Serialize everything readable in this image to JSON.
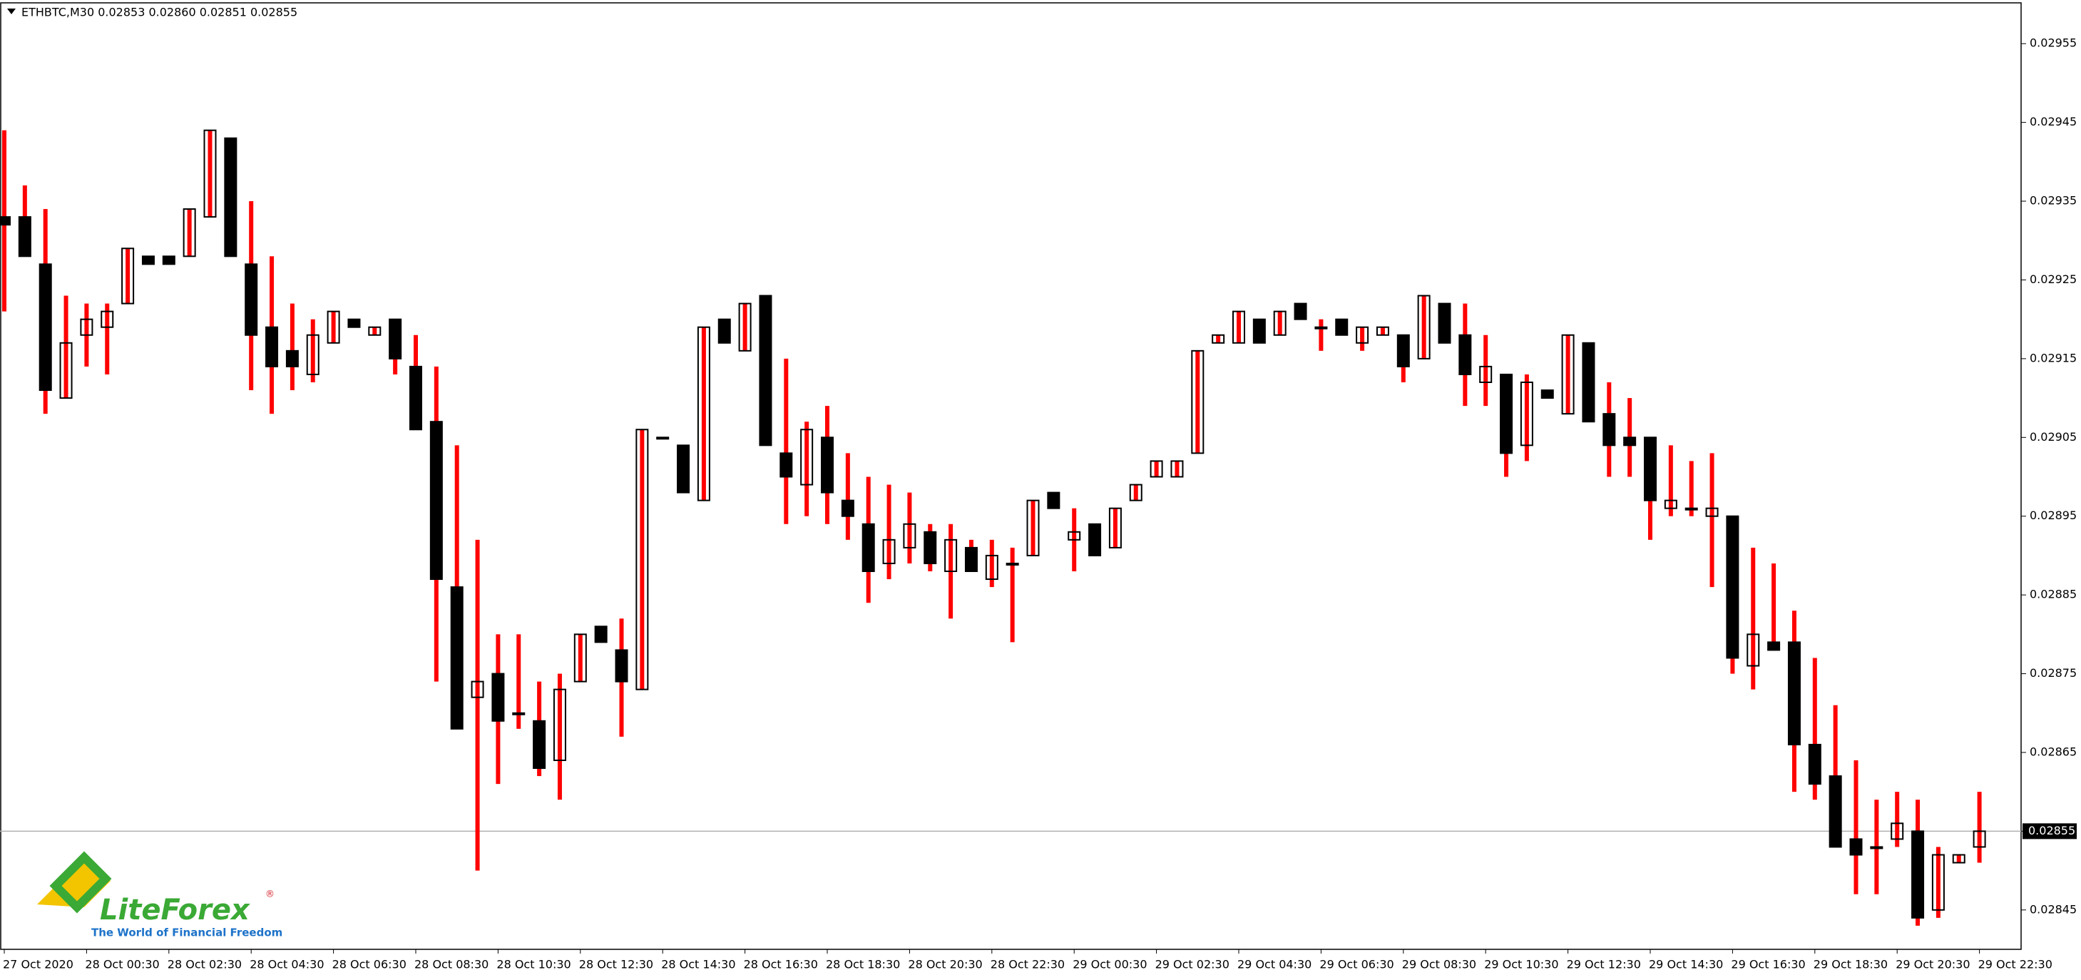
{
  "header": {
    "title": "ETHBTC,M30  0.02853 0.02860 0.02851 0.02855"
  },
  "logo": {
    "name": "LiteForex",
    "tagline": "The World of Financial Freedom"
  },
  "chart_data": {
    "type": "candlestick",
    "categories": [
      "27 Oct 2020",
      null,
      null,
      null,
      "28 Oct 00:30",
      null,
      null,
      null,
      "28 Oct 02:30",
      null,
      null,
      null,
      "28 Oct 04:30",
      null,
      null,
      null,
      "28 Oct 06:30",
      null,
      null,
      null,
      "28 Oct 08:30",
      null,
      null,
      null,
      "28 Oct 10:30",
      null,
      null,
      null,
      "28 Oct 12:30",
      null,
      null,
      null,
      "28 Oct 14:30",
      null,
      null,
      null,
      "28 Oct 16:30",
      null,
      null,
      null,
      "28 Oct 18:30",
      null,
      null,
      null,
      "28 Oct 20:30",
      null,
      null,
      null,
      "28 Oct 22:30",
      null,
      null,
      null,
      "29 Oct 00:30",
      null,
      null,
      null,
      "29 Oct 02:30",
      null,
      null,
      null,
      "29 Oct 04:30",
      null,
      null,
      null,
      "29 Oct 06:30",
      null,
      null,
      null,
      "29 Oct 08:30",
      null,
      null,
      null,
      "29 Oct 10:30",
      null,
      null,
      null,
      "29 Oct 12:30",
      null,
      null,
      null,
      "29 Oct 14:30",
      null,
      null,
      null,
      "29 Oct 16:30",
      null,
      null,
      null,
      "29 Oct 18:30",
      null,
      null,
      null,
      "29 Oct 20:30",
      null,
      null,
      null,
      "29 Oct 22:30"
    ],
    "open": [
      0.02933,
      0.02933,
      0.02927,
      0.0291,
      0.02918,
      0.02919,
      0.02922,
      0.02928,
      0.02928,
      0.02928,
      0.02933,
      0.02943,
      0.02927,
      0.02919,
      0.02916,
      0.02913,
      0.02917,
      0.0292,
      0.02918,
      0.0292,
      0.02914,
      0.02907,
      0.02886,
      0.02872,
      0.02875,
      0.0287,
      0.02869,
      0.02864,
      0.02874,
      0.02881,
      0.02878,
      0.02873,
      0.02905,
      0.02904,
      0.02897,
      0.0292,
      0.02916,
      0.02923,
      0.02903,
      0.02899,
      0.02905,
      0.02897,
      0.02894,
      0.02889,
      0.02891,
      0.02893,
      0.02888,
      0.02891,
      0.02887,
      0.02889,
      0.0289,
      0.02898,
      0.02892,
      0.02894,
      0.02891,
      0.02897,
      0.029,
      0.029,
      0.02903,
      0.02917,
      0.02917,
      0.0292,
      0.02918,
      0.02922,
      0.02919,
      0.0292,
      0.02917,
      0.02918,
      0.02918,
      0.02915,
      0.02922,
      0.02918,
      0.02912,
      0.02913,
      0.02904,
      0.02911,
      0.02908,
      0.02917,
      0.02908,
      0.02905,
      0.02905,
      0.02896,
      0.02896,
      0.02895,
      0.02895,
      0.02876,
      0.02879,
      0.02879,
      0.02866,
      0.02862,
      0.02854,
      0.02853,
      0.02854,
      0.02855,
      0.02845,
      0.02851,
      0.02853
    ],
    "high": [
      0.02944,
      0.02937,
      0.02934,
      0.02923,
      0.02922,
      0.02922,
      0.02929,
      0.02928,
      0.02928,
      0.02934,
      0.02944,
      0.02943,
      0.02935,
      0.02928,
      0.02922,
      0.0292,
      0.02921,
      0.0292,
      0.02919,
      0.0292,
      0.02918,
      0.02914,
      0.02904,
      0.02892,
      0.0288,
      0.0288,
      0.02874,
      0.02875,
      0.0288,
      0.02881,
      0.02882,
      0.02906,
      0.02905,
      0.02904,
      0.02919,
      0.0292,
      0.02922,
      0.02923,
      0.02915,
      0.02907,
      0.02909,
      0.02903,
      0.029,
      0.02899,
      0.02898,
      0.02894,
      0.02894,
      0.02892,
      0.02892,
      0.02891,
      0.02897,
      0.02898,
      0.02896,
      0.02894,
      0.02896,
      0.02899,
      0.02902,
      0.02902,
      0.02916,
      0.02918,
      0.02921,
      0.0292,
      0.02921,
      0.02922,
      0.0292,
      0.0292,
      0.02919,
      0.02919,
      0.02918,
      0.02923,
      0.02922,
      0.02922,
      0.02918,
      0.02913,
      0.02913,
      0.02911,
      0.02918,
      0.02917,
      0.02912,
      0.0291,
      0.02905,
      0.02904,
      0.02902,
      0.02903,
      0.02895,
      0.02891,
      0.02889,
      0.02883,
      0.02877,
      0.02871,
      0.02864,
      0.02859,
      0.0286,
      0.02859,
      0.02853,
      0.02852,
      0.0286
    ],
    "low": [
      0.02921,
      0.02928,
      0.02908,
      0.0291,
      0.02914,
      0.02913,
      0.02922,
      0.02927,
      0.02927,
      0.02928,
      0.02933,
      0.02928,
      0.02911,
      0.02908,
      0.02911,
      0.02912,
      0.02917,
      0.02919,
      0.02918,
      0.02913,
      0.02906,
      0.02874,
      0.02868,
      0.0285,
      0.02861,
      0.02868,
      0.02862,
      0.02859,
      0.02874,
      0.02879,
      0.02867,
      0.02873,
      0.02905,
      0.02898,
      0.02897,
      0.02917,
      0.02916,
      0.02904,
      0.02894,
      0.02895,
      0.02894,
      0.02892,
      0.02884,
      0.02887,
      0.02889,
      0.02888,
      0.02882,
      0.02888,
      0.02886,
      0.02879,
      0.0289,
      0.02896,
      0.02888,
      0.0289,
      0.02891,
      0.02897,
      0.029,
      0.029,
      0.02903,
      0.02917,
      0.02917,
      0.02917,
      0.02918,
      0.0292,
      0.02916,
      0.02918,
      0.02916,
      0.02918,
      0.02912,
      0.02915,
      0.02917,
      0.02909,
      0.02909,
      0.029,
      0.02902,
      0.0291,
      0.02908,
      0.02907,
      0.029,
      0.029,
      0.02892,
      0.02895,
      0.02895,
      0.02886,
      0.02875,
      0.02873,
      0.02878,
      0.0286,
      0.02859,
      0.02853,
      0.02847,
      0.02847,
      0.02853,
      0.02843,
      0.02844,
      0.02851,
      0.02851
    ],
    "close": [
      0.02932,
      0.02928,
      0.02911,
      0.02917,
      0.0292,
      0.02921,
      0.02929,
      0.02927,
      0.02927,
      0.02934,
      0.02944,
      0.02928,
      0.02918,
      0.02914,
      0.02914,
      0.02918,
      0.02921,
      0.02919,
      0.02919,
      0.02915,
      0.02906,
      0.02887,
      0.02868,
      0.02874,
      0.02869,
      0.0287,
      0.02863,
      0.02873,
      0.0288,
      0.02879,
      0.02874,
      0.02906,
      0.02905,
      0.02898,
      0.02919,
      0.02917,
      0.02922,
      0.02904,
      0.029,
      0.02906,
      0.02898,
      0.02895,
      0.02888,
      0.02892,
      0.02894,
      0.02889,
      0.02892,
      0.02888,
      0.0289,
      0.02889,
      0.02897,
      0.02896,
      0.02893,
      0.0289,
      0.02896,
      0.02899,
      0.02902,
      0.02902,
      0.02916,
      0.02918,
      0.02921,
      0.02917,
      0.02921,
      0.0292,
      0.02919,
      0.02918,
      0.02919,
      0.02919,
      0.02914,
      0.02923,
      0.02917,
      0.02913,
      0.02914,
      0.02903,
      0.02912,
      0.0291,
      0.02918,
      0.02907,
      0.02904,
      0.02904,
      0.02897,
      0.02897,
      0.02896,
      0.02896,
      0.02877,
      0.0288,
      0.02878,
      0.02866,
      0.02861,
      0.02853,
      0.02852,
      0.02853,
      0.02856,
      0.02844,
      0.02852,
      0.02852,
      0.02855
    ],
    "up_color": "#ffffff",
    "down_color": "#000000",
    "outline_color": "#000000",
    "wick_color": "#ff0000",
    "ylim": [
      0.0284,
      0.0296
    ],
    "yticks": [
      0.02955,
      0.02945,
      0.02935,
      0.02925,
      0.02915,
      0.02905,
      0.02895,
      0.02885,
      0.02875,
      0.02865,
      0.02855,
      0.02845
    ],
    "last_price": 0.02855
  }
}
